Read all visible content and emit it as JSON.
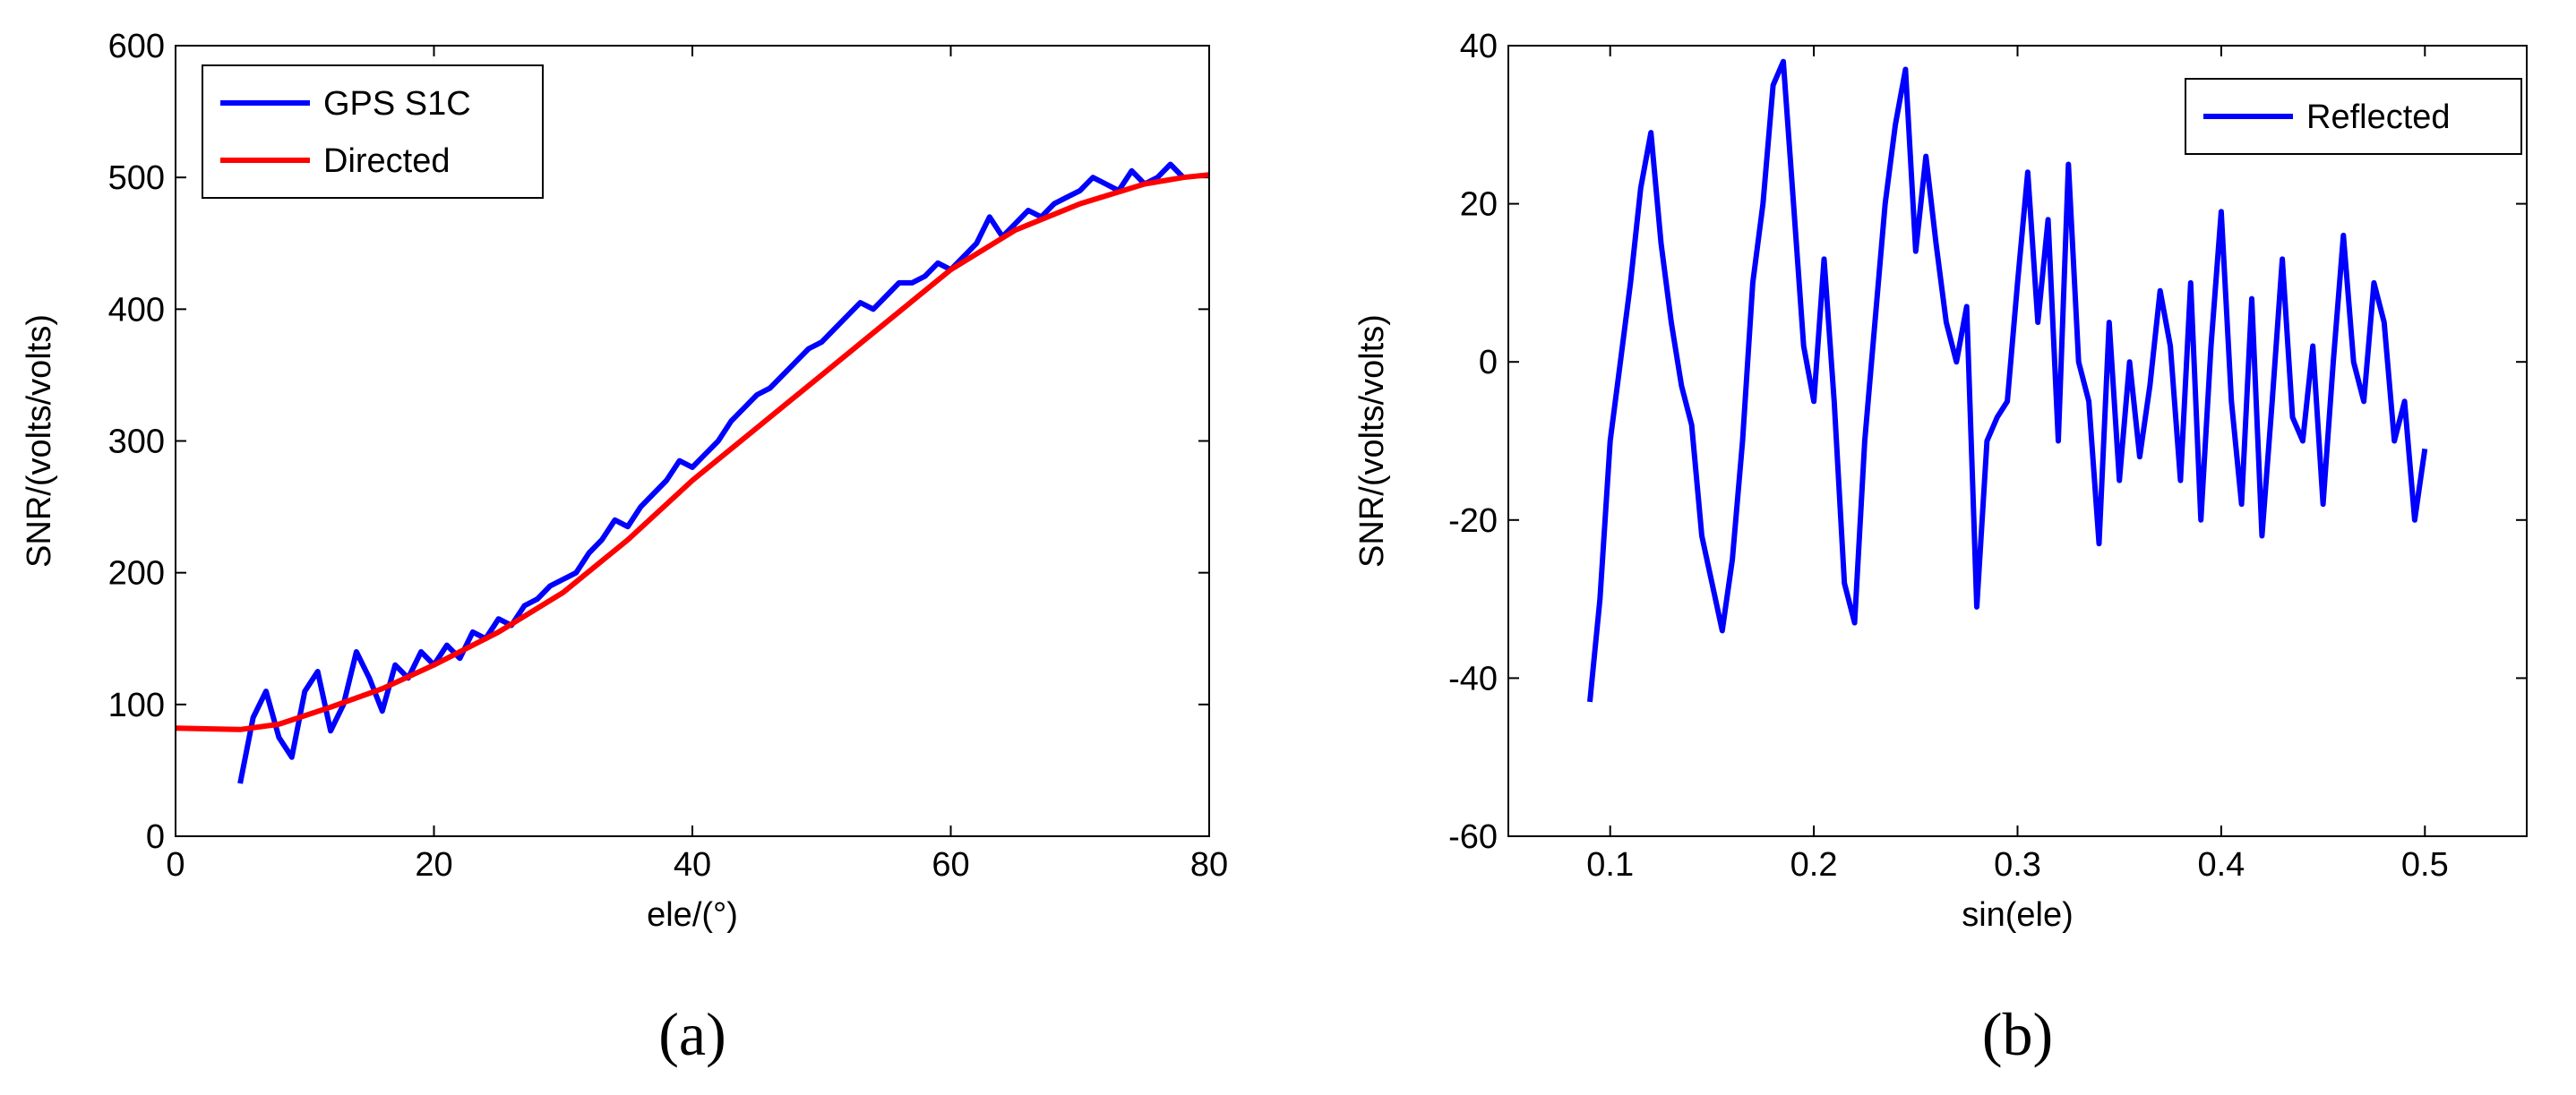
{
  "chart_data": [
    {
      "type": "line",
      "caption": "(a)",
      "xlabel": "ele/(°)",
      "ylabel": "SNR/(volts/volts)",
      "xlim": [
        0,
        80
      ],
      "xticks": [
        0,
        20,
        40,
        60,
        80
      ],
      "ylim": [
        0,
        600
      ],
      "yticks": [
        0,
        100,
        200,
        300,
        400,
        500,
        600
      ],
      "legend": "upper left",
      "series": [
        {
          "name": "GPS S1C",
          "color": "#0000ff",
          "x": [
            5,
            6,
            7,
            8,
            9,
            10,
            11,
            12,
            13,
            14,
            15,
            16,
            17,
            18,
            19,
            20,
            21,
            22,
            23,
            24,
            25,
            26,
            27,
            28,
            29,
            30,
            31,
            32,
            33,
            34,
            35,
            36,
            37,
            38,
            39,
            40,
            41,
            42,
            43,
            44,
            45,
            46,
            47,
            48,
            49,
            50,
            51,
            52,
            53,
            54,
            55,
            56,
            57,
            58,
            59,
            60,
            61,
            62,
            63,
            64,
            65,
            66,
            67,
            68,
            69,
            70,
            71,
            72,
            73,
            74,
            75,
            76,
            77,
            78
          ],
          "values": [
            40,
            90,
            110,
            75,
            60,
            110,
            125,
            80,
            100,
            140,
            120,
            95,
            130,
            120,
            140,
            130,
            145,
            135,
            155,
            150,
            165,
            160,
            175,
            180,
            190,
            195,
            200,
            215,
            225,
            240,
            235,
            250,
            260,
            270,
            285,
            280,
            290,
            300,
            315,
            325,
            335,
            340,
            350,
            360,
            370,
            375,
            385,
            395,
            405,
            400,
            410,
            420,
            420,
            425,
            435,
            430,
            440,
            450,
            470,
            455,
            465,
            475,
            470,
            480,
            485,
            490,
            500,
            495,
            490,
            505,
            495,
            500,
            510,
            500
          ]
        },
        {
          "name": "Directed",
          "color": "#ff0000",
          "x": [
            0,
            5,
            8,
            12,
            16,
            20,
            25,
            30,
            35,
            40,
            45,
            50,
            55,
            60,
            65,
            70,
            75,
            78,
            80
          ],
          "values": [
            82,
            81,
            85,
            98,
            112,
            130,
            155,
            185,
            225,
            270,
            310,
            350,
            390,
            430,
            460,
            480,
            495,
            500,
            502
          ]
        }
      ]
    },
    {
      "type": "line",
      "caption": "(b)",
      "xlabel": "sin(ele)",
      "ylabel": "SNR/(volts/volts)",
      "xlim": [
        0.05,
        0.55
      ],
      "xticks": [
        0.1,
        0.2,
        0.3,
        0.4,
        0.5
      ],
      "ylim": [
        -60,
        40
      ],
      "yticks": [
        -60,
        -40,
        -20,
        0,
        20,
        40
      ],
      "legend": "upper right",
      "series": [
        {
          "name": "Reflected",
          "color": "#0000ff",
          "x": [
            0.09,
            0.095,
            0.1,
            0.105,
            0.11,
            0.115,
            0.12,
            0.125,
            0.13,
            0.135,
            0.14,
            0.145,
            0.15,
            0.155,
            0.16,
            0.165,
            0.17,
            0.175,
            0.18,
            0.185,
            0.19,
            0.195,
            0.2,
            0.205,
            0.21,
            0.215,
            0.22,
            0.225,
            0.23,
            0.235,
            0.24,
            0.245,
            0.25,
            0.255,
            0.26,
            0.265,
            0.27,
            0.275,
            0.28,
            0.285,
            0.29,
            0.295,
            0.3,
            0.305,
            0.31,
            0.315,
            0.32,
            0.325,
            0.33,
            0.335,
            0.34,
            0.345,
            0.35,
            0.355,
            0.36,
            0.365,
            0.37,
            0.375,
            0.38,
            0.385,
            0.39,
            0.395,
            0.4,
            0.405,
            0.41,
            0.415,
            0.42,
            0.425,
            0.43,
            0.435,
            0.44,
            0.445,
            0.45,
            0.455,
            0.46,
            0.465,
            0.47,
            0.475,
            0.48,
            0.485,
            0.49,
            0.495,
            0.5
          ],
          "values": [
            -43,
            -30,
            -10,
            0,
            10,
            22,
            29,
            15,
            5,
            -3,
            -8,
            -22,
            -28,
            -34,
            -25,
            -10,
            10,
            20,
            35,
            38,
            20,
            2,
            -5,
            13,
            -5,
            -28,
            -33,
            -10,
            5,
            20,
            30,
            37,
            14,
            26,
            15,
            5,
            0,
            7,
            -31,
            -10,
            -7,
            -5,
            10,
            24,
            5,
            18,
            -10,
            25,
            0,
            -5,
            -23,
            5,
            -15,
            0,
            -12,
            -3,
            9,
            2,
            -15,
            10,
            -20,
            2,
            19,
            -5,
            -18,
            8,
            -22,
            -5,
            13,
            -7,
            -10,
            2,
            -18,
            0,
            16,
            0,
            -5,
            10,
            5,
            -10,
            -5,
            -20,
            -11
          ]
        }
      ]
    }
  ]
}
